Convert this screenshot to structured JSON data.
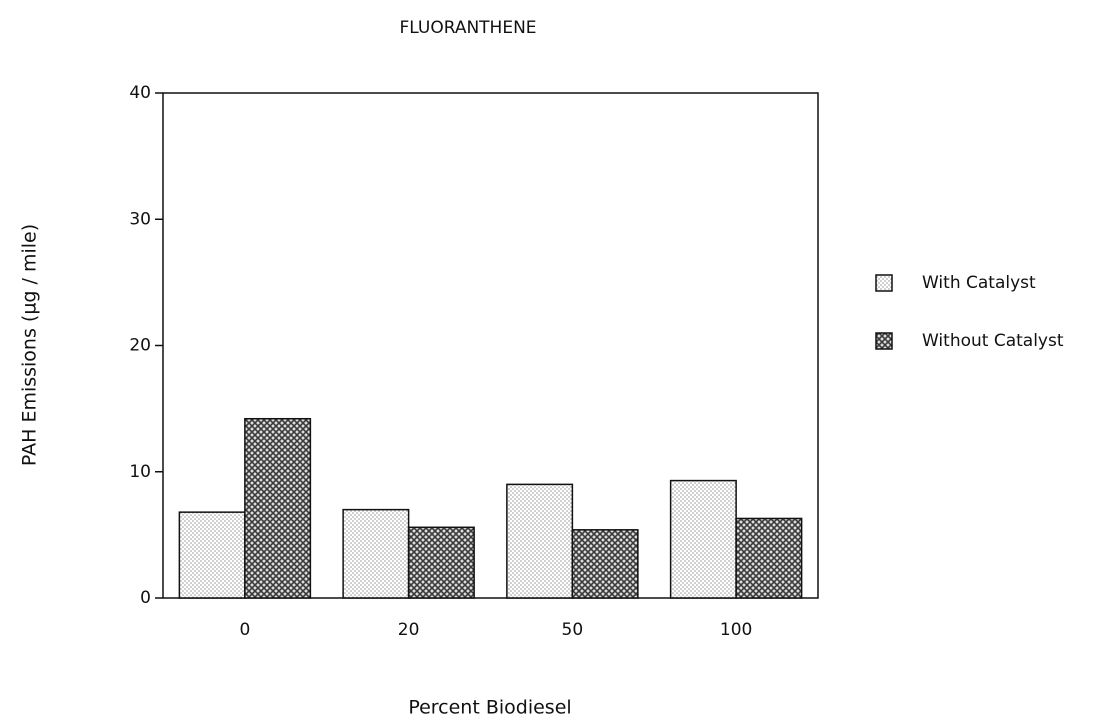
{
  "chart_data": {
    "type": "bar",
    "title": "FLUORANTHENE",
    "x_label": "Percent Biodiesel",
    "y_label": "PAH Emissions (µg / mile)",
    "categories": [
      "0",
      "20",
      "50",
      "100"
    ],
    "series": [
      {
        "name": "With Catalyst",
        "color": "#9a9a9a",
        "values": [
          6.8,
          7.0,
          9.0,
          9.3
        ]
      },
      {
        "name": "Without Catalyst",
        "color": "#3a3a3a",
        "values": [
          14.2,
          5.6,
          5.4,
          6.3
        ]
      }
    ],
    "ylim": [
      0,
      40
    ],
    "yticks": [
      0,
      10,
      20,
      30,
      40
    ],
    "legend": "right"
  }
}
